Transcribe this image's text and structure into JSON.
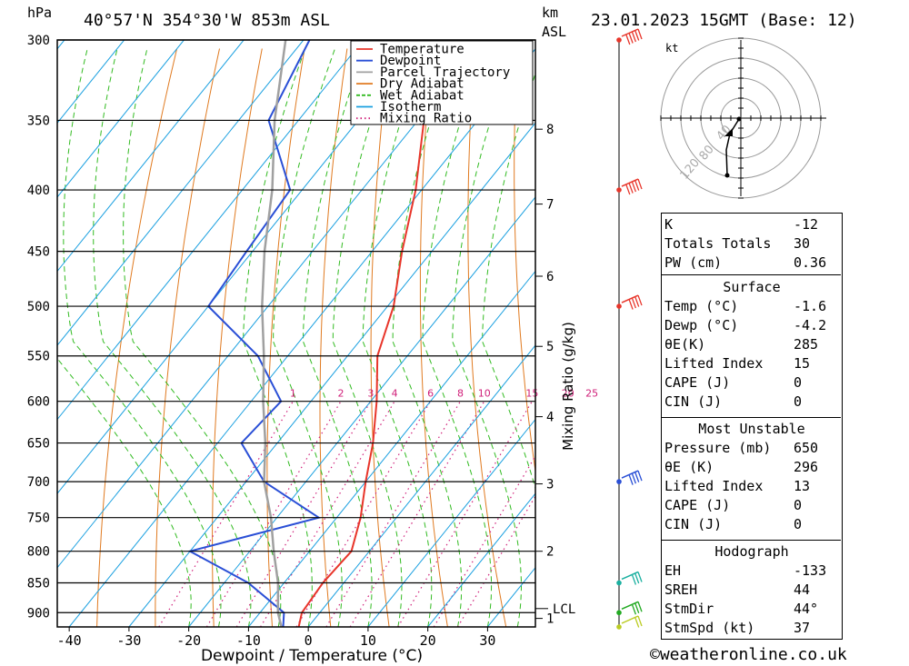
{
  "header": {
    "hpa_unit": "hPa",
    "km_unit": "km",
    "asl_unit": "ASL",
    "location": "40°57'N 354°30'W 853m ASL",
    "datetime": "23.01.2023 15GMT (Base: 12)"
  },
  "legend": [
    {
      "name": "Temperature",
      "color": "#e8352a",
      "style": "solid"
    },
    {
      "name": "Dewpoint",
      "color": "#2a4fd6",
      "style": "solid"
    },
    {
      "name": "Parcel Trajectory",
      "color": "#a0a0a0",
      "style": "solid"
    },
    {
      "name": "Dry Adiabat",
      "color": "#e07a20",
      "style": "solid"
    },
    {
      "name": "Wet Adiabat",
      "color": "#33bb22",
      "style": "dashed"
    },
    {
      "name": "Isotherm",
      "color": "#1aa0e0",
      "style": "solid"
    },
    {
      "name": "Mixing Ratio",
      "color": "#d0207a",
      "style": "dotted"
    }
  ],
  "chart_data": {
    "type": "skew-t",
    "xlabel": "Dewpoint / Temperature (°C)",
    "ylabel": "hPa",
    "y2label": "Mixing Ratio (g/kg)",
    "pressure_levels": [
      300,
      350,
      400,
      450,
      500,
      550,
      600,
      650,
      700,
      750,
      800,
      850,
      900
    ],
    "pressure_range": [
      300,
      925
    ],
    "x_ticks": [
      -40,
      -30,
      -20,
      -10,
      0,
      10,
      20,
      30
    ],
    "x_range": [
      -42,
      38
    ],
    "km_ticks": [
      {
        "label": "1",
        "pressure": 910
      },
      {
        "label": "2",
        "pressure": 800
      },
      {
        "label": "3",
        "pressure": 703
      },
      {
        "label": "4",
        "pressure": 618
      },
      {
        "label": "5",
        "pressure": 540
      },
      {
        "label": "6",
        "pressure": 472
      },
      {
        "label": "7",
        "pressure": 411
      },
      {
        "label": "8",
        "pressure": 356
      }
    ],
    "lcl": {
      "label": "LCL",
      "pressure": 893
    },
    "mixing_ratio_labels": [
      "1",
      "2",
      "3",
      "4",
      "6",
      "8",
      "10",
      "15",
      "20",
      "25"
    ],
    "series": [
      {
        "name": "Temperature",
        "points": [
          [
            925,
            -1.6
          ],
          [
            900,
            -3
          ],
          [
            850,
            -3.5
          ],
          [
            800,
            -3
          ],
          [
            750,
            -6
          ],
          [
            700,
            -10
          ],
          [
            650,
            -14
          ],
          [
            600,
            -19
          ],
          [
            550,
            -25
          ],
          [
            500,
            -29
          ],
          [
            450,
            -35
          ],
          [
            400,
            -41
          ],
          [
            350,
            -49
          ],
          [
            300,
            -56
          ]
        ]
      },
      {
        "name": "Dewpoint",
        "points": [
          [
            925,
            -4.2
          ],
          [
            900,
            -6
          ],
          [
            850,
            -16
          ],
          [
            800,
            -30
          ],
          [
            750,
            -13
          ],
          [
            700,
            -27
          ],
          [
            650,
            -36
          ],
          [
            600,
            -35
          ],
          [
            550,
            -45
          ],
          [
            500,
            -60
          ],
          [
            450,
            -61
          ],
          [
            400,
            -62
          ],
          [
            350,
            -75
          ],
          [
            300,
            -79
          ]
        ]
      },
      {
        "name": "Parcel Trajectory",
        "points": [
          [
            925,
            -4.5
          ],
          [
            900,
            -7
          ],
          [
            850,
            -11
          ],
          [
            800,
            -16
          ],
          [
            750,
            -21
          ],
          [
            700,
            -27
          ],
          [
            650,
            -32
          ],
          [
            600,
            -38
          ],
          [
            550,
            -44
          ],
          [
            500,
            -51
          ],
          [
            450,
            -58
          ],
          [
            400,
            -65
          ],
          [
            350,
            -74
          ],
          [
            300,
            -83
          ]
        ]
      }
    ],
    "wind_barbs": [
      {
        "pressure": 300,
        "speed_kt": 45,
        "color": "#e8352a"
      },
      {
        "pressure": 400,
        "speed_kt": 50,
        "color": "#e8352a"
      },
      {
        "pressure": 500,
        "speed_kt": 35,
        "color": "#e8352a"
      },
      {
        "pressure": 700,
        "speed_kt": 40,
        "color": "#2a4fd6"
      },
      {
        "pressure": 850,
        "speed_kt": 30,
        "color": "#1ab0a0"
      },
      {
        "pressure": 900,
        "speed_kt": 25,
        "color": "#22aa22"
      },
      {
        "pressure": 925,
        "speed_kt": 20,
        "color": "#bbcc22"
      }
    ],
    "hodograph": {
      "unit": "kt",
      "ring_labels": [
        "40",
        "80",
        "120"
      ]
    }
  },
  "indices": {
    "general": [
      {
        "label": "K",
        "value": "-12"
      },
      {
        "label": "Totals Totals",
        "value": "30"
      },
      {
        "label": "PW (cm)",
        "value": "0.36"
      }
    ],
    "surface_title": "Surface",
    "surface": [
      {
        "label": "Temp (°C)",
        "value": "-1.6"
      },
      {
        "label": "Dewp (°C)",
        "value": "-4.2"
      },
      {
        "label": "θE(K)",
        "value": "285"
      },
      {
        "label": "Lifted Index",
        "value": "15"
      },
      {
        "label": "CAPE (J)",
        "value": "0"
      },
      {
        "label": "CIN (J)",
        "value": "0"
      }
    ],
    "mu_title": "Most Unstable",
    "mu": [
      {
        "label": "Pressure (mb)",
        "value": "650"
      },
      {
        "label": "θE (K)",
        "value": "296"
      },
      {
        "label": "Lifted Index",
        "value": "13"
      },
      {
        "label": "CAPE (J)",
        "value": "0"
      },
      {
        "label": "CIN (J)",
        "value": "0"
      }
    ],
    "hodo_title": "Hodograph",
    "hodo": [
      {
        "label": "EH",
        "value": "-133"
      },
      {
        "label": "SREH",
        "value": "44"
      },
      {
        "label": "StmDir",
        "value": "44°"
      },
      {
        "label": "StmSpd (kt)",
        "value": "37"
      }
    ]
  },
  "footer": "©weatheronline.co.uk"
}
